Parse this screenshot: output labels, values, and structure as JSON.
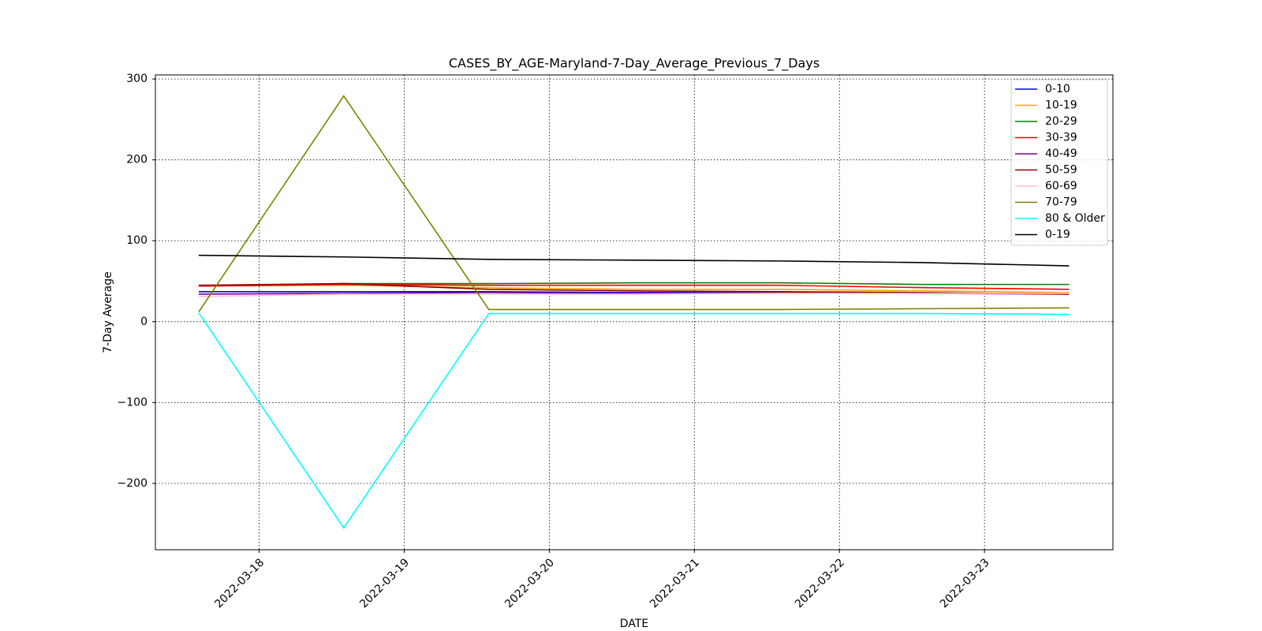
{
  "chart_data": {
    "type": "line",
    "title": "CASES_BY_AGE-Maryland-7-Day_Average_Previous_7_Days",
    "xlabel": "DATE",
    "ylabel": "7-Day Average",
    "x": [
      "2022-03-17T14:00",
      "2022-03-18T14:00",
      "2022-03-19T14:00",
      "2022-03-20T14:00",
      "2022-03-21T14:00",
      "2022-03-22T14:00",
      "2022-03-23T14:00"
    ],
    "xlim": [
      "2022-03-17T06:50",
      "2022-03-23T21:15"
    ],
    "xticks": [
      "2022-03-18",
      "2022-03-19",
      "2022-03-20",
      "2022-03-21",
      "2022-03-22",
      "2022-03-23"
    ],
    "ylim": [
      -282,
      305
    ],
    "yticks": [
      {
        "value": -200,
        "label": "−200"
      },
      {
        "value": -100,
        "label": "−100"
      },
      0,
      100,
      200,
      300
    ],
    "grid": true,
    "legend": "upper right",
    "series": [
      {
        "name": "0-10",
        "color": "#0000ff",
        "values": [
          37,
          37,
          37,
          36,
          36,
          35,
          35
        ]
      },
      {
        "name": "10-19",
        "color": "#ffa500",
        "values": [
          44,
          45,
          42,
          40,
          40,
          38,
          36
        ]
      },
      {
        "name": "20-29",
        "color": "#008000",
        "values": [
          44,
          47,
          47,
          48,
          48,
          46,
          46
        ]
      },
      {
        "name": "30-39",
        "color": "#ff0000",
        "values": [
          44,
          46,
          45,
          45,
          45,
          42,
          40
        ]
      },
      {
        "name": "40-49",
        "color": "#800080",
        "values": [
          34,
          35,
          36,
          35,
          36,
          35,
          34
        ]
      },
      {
        "name": "50-59",
        "color": "#8b0000",
        "values": [
          45,
          47,
          40,
          38,
          37,
          36,
          34
        ]
      },
      {
        "name": "60-69",
        "color": "#ffc0cb",
        "values": [
          31,
          34,
          34,
          34,
          35,
          35,
          35
        ]
      },
      {
        "name": "70-79",
        "color": "#808000",
        "values": [
          12,
          279,
          15,
          15,
          15,
          16,
          17
        ]
      },
      {
        "name": "80 & Older",
        "color": "#00ffff",
        "values": [
          11,
          -255,
          10,
          10,
          10,
          10,
          9
        ]
      },
      {
        "name": "0-19",
        "color": "#000000",
        "values": [
          82,
          80,
          77,
          76,
          75,
          73,
          69
        ]
      }
    ]
  }
}
